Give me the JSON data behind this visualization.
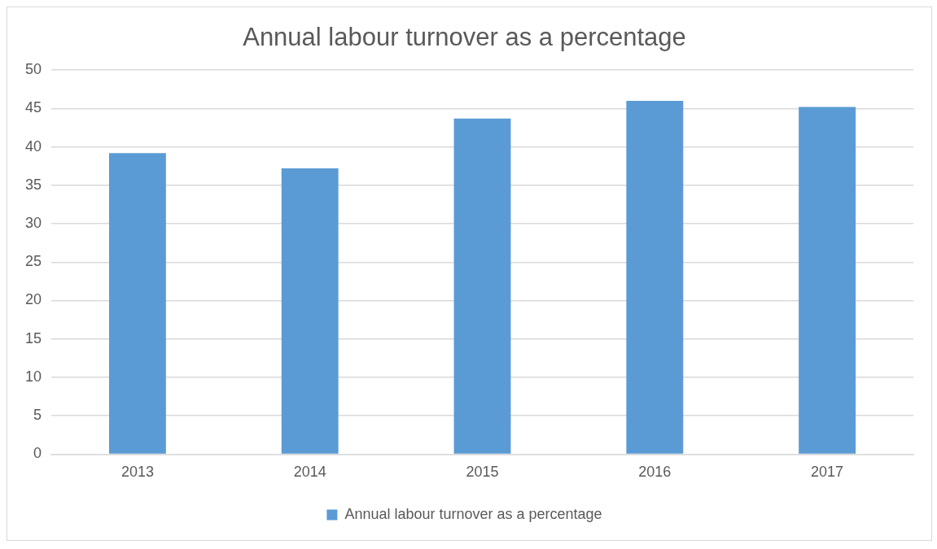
{
  "chart_data": {
    "type": "bar",
    "title": "Annual labour turnover as a percentage",
    "categories": [
      "2013",
      "2014",
      "2015",
      "2016",
      "2017"
    ],
    "series": [
      {
        "name": "Annual labour turnover as a percentage",
        "color": "#5b9bd5",
        "values": [
          39.2,
          37.2,
          43.7,
          46.0,
          45.2
        ]
      }
    ],
    "ylim": [
      0,
      50
    ],
    "yticks": [
      0,
      5,
      10,
      15,
      20,
      25,
      30,
      35,
      40,
      45,
      50
    ],
    "grid": "y",
    "legend": "bottom"
  }
}
